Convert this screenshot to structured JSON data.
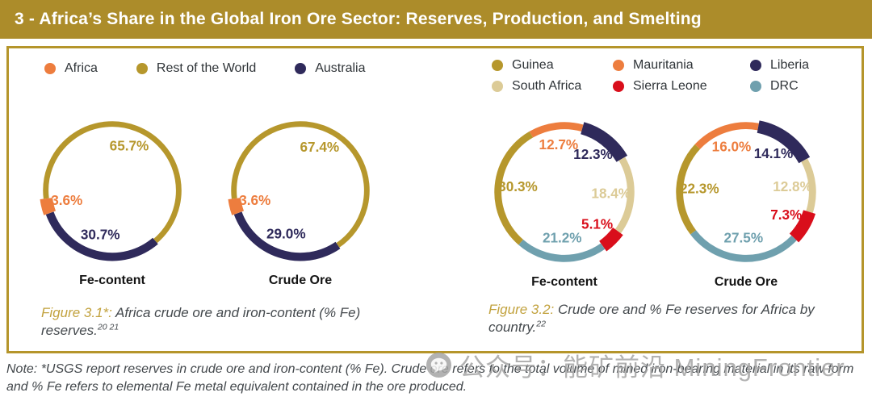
{
  "title_bar": {
    "text": "3 - Africa’s Share in the Global Iron Ore Sector: Reserves, Production, and Smelting"
  },
  "colors": {
    "gold": "#B6972C",
    "orange": "#ED7D3E",
    "navy": "#2F2A5B",
    "beige": "#DCCB97",
    "red": "#D90E1B",
    "teal": "#6FA0AE",
    "title_bg": "#AC8C2A",
    "box_border": "#B5952B",
    "caption_accent": "#C2A23E",
    "text_dark": "#43484C"
  },
  "panel_left": {
    "legend": [
      {
        "label": "Africa",
        "color": "orange"
      },
      {
        "label": "Rest of the World",
        "color": "gold"
      },
      {
        "label": "Australia",
        "color": "navy"
      }
    ],
    "caption": {
      "prefix": "Figure 3.1*:",
      "text": " Africa crude ore and iron-content (% Fe) reserves.",
      "refs": "20 21"
    }
  },
  "panel_right": {
    "legend": [
      {
        "label": "Guinea",
        "color": "gold"
      },
      {
        "label": "Mauritania",
        "color": "orange"
      },
      {
        "label": "Liberia",
        "color": "navy"
      },
      {
        "label": "South Africa",
        "color": "beige"
      },
      {
        "label": "Sierra Leone",
        "color": "red"
      },
      {
        "label": "DRC",
        "color": "teal"
      }
    ],
    "caption": {
      "prefix": "Figure 3.2:",
      "text": " Crude ore and % Fe reserves for Africa by country.",
      "refs": "22"
    }
  },
  "note": {
    "text": "Note: *USGS report reserves in crude ore and iron-content (% Fe). Crude ore refers to the total volume of mined iron-bearing material in its raw form and % Fe refers to elemental Fe metal equivalent contained in the ore produced."
  },
  "watermark": {
    "text": "公众号：能矿前沿 MiningFrontier",
    "icon": "wechat-icon"
  },
  "chart_data": [
    {
      "type": "donut",
      "group": "global-reserves",
      "label": "Fe-content",
      "unit": "%",
      "start_angle": 263,
      "legend_position": "top",
      "segments": [
        {
          "name": "Rest of the World",
          "value": 65.7,
          "color": "gold",
          "weight": "thin"
        },
        {
          "name": "Australia",
          "value": 30.7,
          "color": "navy",
          "weight": "medium"
        },
        {
          "name": "Africa",
          "value": 3.6,
          "color": "orange",
          "weight": "thick"
        }
      ]
    },
    {
      "type": "donut",
      "group": "global-reserves",
      "label": "Crude Ore",
      "unit": "%",
      "start_angle": 263,
      "legend_position": "top",
      "segments": [
        {
          "name": "Rest of the World",
          "value": 67.4,
          "color": "gold",
          "weight": "thin"
        },
        {
          "name": "Australia",
          "value": 29.0,
          "color": "navy",
          "weight": "medium"
        },
        {
          "name": "Africa",
          "value": 3.6,
          "color": "orange",
          "weight": "thick"
        }
      ]
    },
    {
      "type": "donut",
      "group": "africa-by-country",
      "label": "Fe-content",
      "unit": "%",
      "start_angle": 330,
      "legend_position": "top",
      "segments": [
        {
          "name": "Mauritania",
          "value": 12.7,
          "color": "orange",
          "weight": "regular"
        },
        {
          "name": "Liberia",
          "value": 12.3,
          "color": "navy",
          "weight": "thick"
        },
        {
          "name": "South Africa",
          "value": 18.4,
          "color": "beige",
          "weight": "regular"
        },
        {
          "name": "Sierra Leone",
          "value": 5.1,
          "color": "red",
          "weight": "thick"
        },
        {
          "name": "DRC",
          "value": 21.2,
          "color": "teal",
          "weight": "regular"
        },
        {
          "name": "Guinea",
          "value": 30.3,
          "color": "gold",
          "weight": "regular"
        }
      ]
    },
    {
      "type": "donut",
      "group": "africa-by-country",
      "label": "Crude Ore",
      "unit": "%",
      "start_angle": 313,
      "legend_position": "top",
      "segments": [
        {
          "name": "Mauritania",
          "value": 16.0,
          "color": "orange",
          "weight": "regular"
        },
        {
          "name": "Liberia",
          "value": 14.1,
          "color": "navy",
          "weight": "thick"
        },
        {
          "name": "South Africa",
          "value": 12.8,
          "color": "beige",
          "weight": "regular"
        },
        {
          "name": "Sierra Leone",
          "value": 7.3,
          "color": "red",
          "weight": "thick"
        },
        {
          "name": "DRC",
          "value": 27.5,
          "color": "teal",
          "weight": "regular"
        },
        {
          "name": "Guinea",
          "value": 22.3,
          "color": "gold",
          "weight": "regular"
        }
      ]
    }
  ]
}
